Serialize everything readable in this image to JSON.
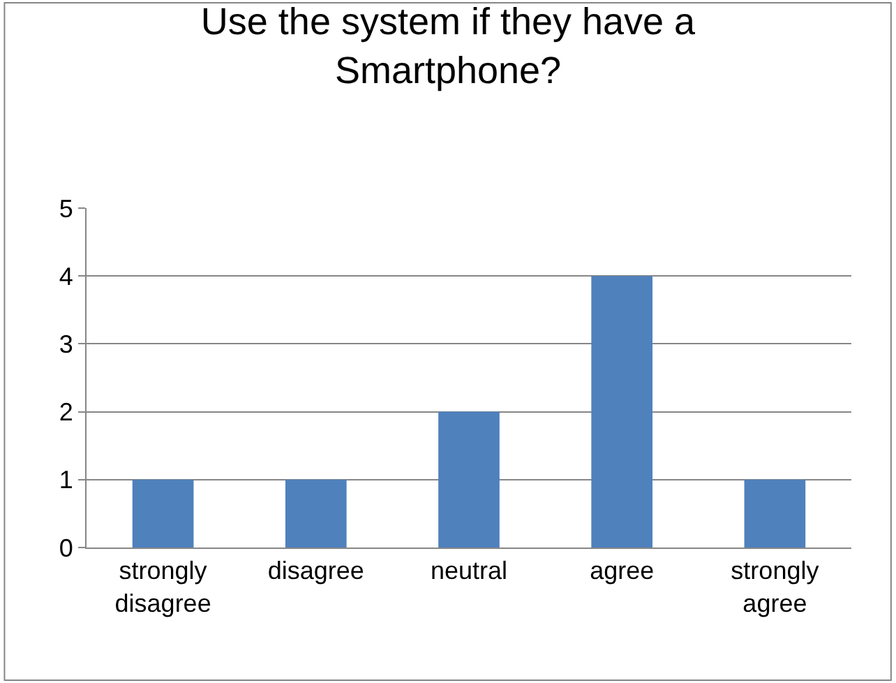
{
  "chart_data": {
    "type": "bar",
    "title": "Use the system if they have a Smartphone?",
    "categories": [
      "strongly disagree",
      "disagree",
      "neutral",
      "agree",
      "strongly agree"
    ],
    "values": [
      1,
      1,
      2,
      4,
      1
    ],
    "color": "#4f81bd",
    "ylim": [
      0,
      5
    ],
    "yticks": [
      0,
      1,
      2,
      3,
      4,
      5
    ],
    "grid": "y",
    "legend": false
  }
}
